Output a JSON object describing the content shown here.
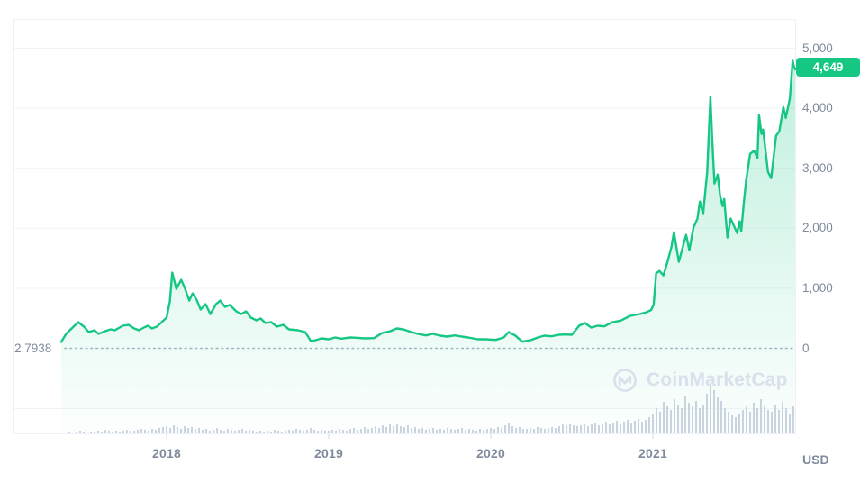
{
  "chart": {
    "current_price_label": "4,649",
    "min_price_label": "2.7938",
    "unit_label": "USD",
    "watermark_brand": "CoinMarketCap",
    "colors": {
      "line": "#16C784",
      "fill_top": "rgba(22,199,132,0.28)",
      "fill_bottom": "rgba(22,199,132,0.01)",
      "axis_text": "#808A9D",
      "badge_bg": "#16C784",
      "badge_text": "#FFFFFF",
      "volume_bar": "#CDD4E1",
      "grid": "#F1F3F7",
      "border": "#EDF0F4",
      "tick": "#D5DAE3",
      "dotted_line": "#A9B2C3",
      "watermark": "#DBE0EC"
    }
  },
  "chart_data": {
    "type": "area",
    "grid": true,
    "legend": "none",
    "x_axis": {
      "tick_labels": [
        "2018",
        "2019",
        "2020",
        "2021"
      ],
      "tick_values": [
        2018,
        2019,
        2020,
        2021
      ],
      "range": [
        2017.33,
        2021.88
      ]
    },
    "y_axis": {
      "tick_labels": [
        "5,000",
        "4,000",
        "3,000",
        "2,000",
        "1,000",
        "0"
      ],
      "tick_values": [
        5000,
        4000,
        3000,
        2000,
        1000,
        0
      ],
      "range": [
        0,
        5300
      ],
      "unit": "USD"
    },
    "last_value": 4649,
    "min_value": 2.7938,
    "series": [
      {
        "name": "price_usd",
        "points": [
          [
            2017.35,
            105
          ],
          [
            2017.38,
            240
          ],
          [
            2017.42,
            345
          ],
          [
            2017.455,
            435
          ],
          [
            2017.49,
            360
          ],
          [
            2017.52,
            270
          ],
          [
            2017.555,
            300
          ],
          [
            2017.58,
            240
          ],
          [
            2017.62,
            285
          ],
          [
            2017.655,
            315
          ],
          [
            2017.68,
            300
          ],
          [
            2017.73,
            375
          ],
          [
            2017.765,
            390
          ],
          [
            2017.8,
            330
          ],
          [
            2017.83,
            300
          ],
          [
            2017.86,
            345
          ],
          [
            2017.885,
            375
          ],
          [
            2017.91,
            330
          ],
          [
            2017.94,
            360
          ],
          [
            2017.97,
            435
          ],
          [
            2018.0,
            510
          ],
          [
            2018.02,
            780
          ],
          [
            2018.035,
            1260
          ],
          [
            2018.06,
            990
          ],
          [
            2018.09,
            1140
          ],
          [
            2018.11,
            1020
          ],
          [
            2018.14,
            795
          ],
          [
            2018.16,
            915
          ],
          [
            2018.185,
            810
          ],
          [
            2018.21,
            645
          ],
          [
            2018.24,
            735
          ],
          [
            2018.27,
            570
          ],
          [
            2018.305,
            735
          ],
          [
            2018.33,
            795
          ],
          [
            2018.36,
            690
          ],
          [
            2018.39,
            720
          ],
          [
            2018.43,
            615
          ],
          [
            2018.46,
            570
          ],
          [
            2018.49,
            615
          ],
          [
            2018.52,
            510
          ],
          [
            2018.555,
            465
          ],
          [
            2018.58,
            495
          ],
          [
            2018.61,
            420
          ],
          [
            2018.645,
            435
          ],
          [
            2018.68,
            360
          ],
          [
            2018.72,
            390
          ],
          [
            2018.755,
            315
          ],
          [
            2018.81,
            300
          ],
          [
            2018.855,
            270
          ],
          [
            2018.89,
            120
          ],
          [
            2018.92,
            135
          ],
          [
            2018.955,
            165
          ],
          [
            2019.0,
            150
          ],
          [
            2019.04,
            180
          ],
          [
            2019.08,
            160
          ],
          [
            2019.13,
            180
          ],
          [
            2019.17,
            175
          ],
          [
            2019.22,
            165
          ],
          [
            2019.28,
            170
          ],
          [
            2019.33,
            255
          ],
          [
            2019.38,
            285
          ],
          [
            2019.42,
            330
          ],
          [
            2019.46,
            315
          ],
          [
            2019.51,
            270
          ],
          [
            2019.55,
            240
          ],
          [
            2019.6,
            215
          ],
          [
            2019.64,
            240
          ],
          [
            2019.69,
            210
          ],
          [
            2019.73,
            195
          ],
          [
            2019.78,
            215
          ],
          [
            2019.82,
            195
          ],
          [
            2019.86,
            180
          ],
          [
            2019.92,
            150
          ],
          [
            2019.97,
            150
          ],
          [
            2020.03,
            140
          ],
          [
            2020.08,
            180
          ],
          [
            2020.11,
            270
          ],
          [
            2020.15,
            215
          ],
          [
            2020.195,
            110
          ],
          [
            2020.25,
            140
          ],
          [
            2020.29,
            180
          ],
          [
            2020.33,
            210
          ],
          [
            2020.375,
            200
          ],
          [
            2020.42,
            225
          ],
          [
            2020.46,
            230
          ],
          [
            2020.5,
            225
          ],
          [
            2020.545,
            375
          ],
          [
            2020.58,
            420
          ],
          [
            2020.62,
            345
          ],
          [
            2020.66,
            375
          ],
          [
            2020.7,
            365
          ],
          [
            2020.75,
            435
          ],
          [
            2020.8,
            460
          ],
          [
            2020.86,
            540
          ],
          [
            2020.92,
            570
          ],
          [
            2020.96,
            600
          ],
          [
            2020.99,
            640
          ],
          [
            2021.005,
            730
          ],
          [
            2021.02,
            1245
          ],
          [
            2021.04,
            1290
          ],
          [
            2021.065,
            1215
          ],
          [
            2021.09,
            1440
          ],
          [
            2021.115,
            1695
          ],
          [
            2021.13,
            1935
          ],
          [
            2021.16,
            1440
          ],
          [
            2021.205,
            1890
          ],
          [
            2021.225,
            1635
          ],
          [
            2021.25,
            2010
          ],
          [
            2021.275,
            2160
          ],
          [
            2021.29,
            2445
          ],
          [
            2021.31,
            2235
          ],
          [
            2021.335,
            2940
          ],
          [
            2021.355,
            4190
          ],
          [
            2021.365,
            3545
          ],
          [
            2021.38,
            2745
          ],
          [
            2021.4,
            2895
          ],
          [
            2021.415,
            2535
          ],
          [
            2021.43,
            2370
          ],
          [
            2021.44,
            2490
          ],
          [
            2021.46,
            1845
          ],
          [
            2021.48,
            2160
          ],
          [
            2021.5,
            2040
          ],
          [
            2021.52,
            1920
          ],
          [
            2021.535,
            2115
          ],
          [
            2021.545,
            1950
          ],
          [
            2021.56,
            2390
          ],
          [
            2021.575,
            2790
          ],
          [
            2021.6,
            3240
          ],
          [
            2021.625,
            3290
          ],
          [
            2021.645,
            3170
          ],
          [
            2021.655,
            3885
          ],
          [
            2021.67,
            3570
          ],
          [
            2021.68,
            3645
          ],
          [
            2021.71,
            2940
          ],
          [
            2021.73,
            2835
          ],
          [
            2021.76,
            3540
          ],
          [
            2021.78,
            3615
          ],
          [
            2021.805,
            4020
          ],
          [
            2021.82,
            3840
          ],
          [
            2021.845,
            4160
          ],
          [
            2021.862,
            4790
          ],
          [
            2021.87,
            4700
          ],
          [
            2021.877,
            4649
          ]
        ]
      }
    ],
    "volume_bars": [
      1,
      1,
      2,
      1,
      2,
      3,
      2,
      1,
      2,
      2,
      3,
      2,
      4,
      3,
      2,
      3,
      2,
      3,
      4,
      3,
      3,
      4,
      5,
      4,
      3,
      5,
      4,
      6,
      7,
      8,
      6,
      9,
      7,
      5,
      8,
      6,
      7,
      5,
      6,
      4,
      5,
      3,
      4,
      6,
      4,
      3,
      5,
      4,
      3,
      4,
      5,
      3,
      4,
      3,
      2,
      3,
      2,
      3,
      2,
      4,
      3,
      2,
      3,
      4,
      3,
      5,
      4,
      3,
      4,
      6,
      4,
      3,
      4,
      3,
      3,
      4,
      3,
      5,
      4,
      3,
      5,
      6,
      4,
      5,
      7,
      5,
      6,
      8,
      6,
      9,
      7,
      10,
      8,
      11,
      8,
      7,
      9,
      6,
      7,
      5,
      6,
      4,
      5,
      6,
      4,
      5,
      4,
      6,
      5,
      4,
      5,
      6,
      4,
      5,
      4,
      3,
      5,
      4,
      5,
      6,
      5,
      7,
      6,
      9,
      12,
      8,
      6,
      7,
      5,
      5,
      6,
      5,
      7,
      6,
      5,
      6,
      7,
      6,
      8,
      10,
      9,
      11,
      9,
      8,
      9,
      11,
      8,
      10,
      12,
      9,
      11,
      13,
      10,
      12,
      14,
      11,
      13,
      15,
      12,
      14,
      16,
      13,
      15,
      18,
      22,
      28,
      24,
      35,
      30,
      26,
      38,
      32,
      28,
      42,
      34,
      30,
      36,
      28,
      32,
      44,
      54,
      48,
      40,
      36,
      28,
      24,
      20,
      18,
      22,
      26,
      30,
      24,
      34,
      28,
      38,
      30,
      26,
      24,
      32,
      26,
      35,
      28,
      22,
      30
    ]
  }
}
